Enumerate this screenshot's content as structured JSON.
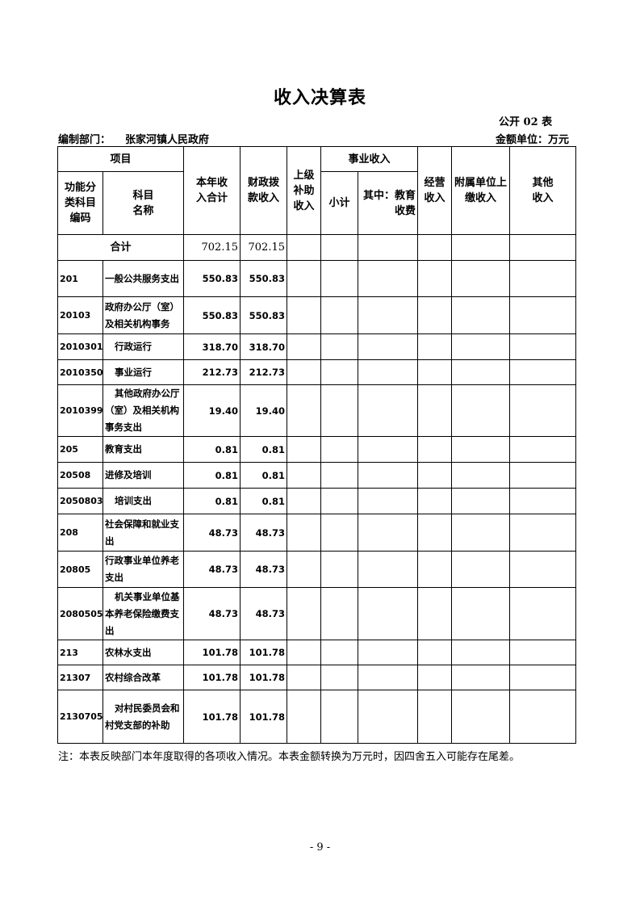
{
  "title": "收入决算表",
  "form_no": "公开 02 表",
  "dept_label": "编制部门：",
  "dept_name": "张家河镇人民政府",
  "unit": "金额单位：万元",
  "headers": {
    "item": "项目",
    "code": "功能分类科目编码",
    "name": "科目名称",
    "total": "本年收入合计",
    "fiscal": "财政拨款收入",
    "upper": "上级补助收入",
    "business": "事业收入",
    "subtotal": "小计",
    "edu": "其中：教育收费",
    "operating": "经营收入",
    "affiliated": "附属单位上缴收入",
    "other": "其他收入"
  },
  "total_row": {
    "label": "合计",
    "total": "702.15",
    "fiscal": "702.15"
  },
  "rows": [
    {
      "code": "201",
      "name": "一般公共服务支出",
      "total": "550.83",
      "fiscal": "550.83",
      "indent": false
    },
    {
      "code": "20103",
      "name": "政府办公厅（室）及相关机构事务",
      "total": "550.83",
      "fiscal": "550.83",
      "indent": false
    },
    {
      "code": "2010301",
      "name": "行政运行",
      "total": "318.70",
      "fiscal": "318.70",
      "indent": true
    },
    {
      "code": "2010350",
      "name": "事业运行",
      "total": "212.73",
      "fiscal": "212.73",
      "indent": true
    },
    {
      "code": "2010399",
      "name": "其他政府办公厅（室）及相关机构事务支出",
      "total": "19.40",
      "fiscal": "19.40",
      "indent": true
    },
    {
      "code": "205",
      "name": "教育支出",
      "total": "0.81",
      "fiscal": "0.81",
      "indent": false
    },
    {
      "code": "20508",
      "name": "进修及培训",
      "total": "0.81",
      "fiscal": "0.81",
      "indent": false
    },
    {
      "code": "2050803",
      "name": "培训支出",
      "total": "0.81",
      "fiscal": "0.81",
      "indent": true
    },
    {
      "code": "208",
      "name": "社会保障和就业支出",
      "total": "48.73",
      "fiscal": "48.73",
      "indent": false
    },
    {
      "code": "20805",
      "name": "行政事业单位养老支出",
      "total": "48.73",
      "fiscal": "48.73",
      "indent": false
    },
    {
      "code": "2080505",
      "name": "机关事业单位基本养老保险缴费支出",
      "total": "48.73",
      "fiscal": "48.73",
      "indent": true
    },
    {
      "code": "213",
      "name": "农林水支出",
      "total": "101.78",
      "fiscal": "101.78",
      "indent": false
    },
    {
      "code": "21307",
      "name": "农村综合改革",
      "total": "101.78",
      "fiscal": "101.78",
      "indent": false
    },
    {
      "code": "2130705",
      "name": "对村民委员会和村党支部的补助",
      "total": "101.78",
      "fiscal": "101.78",
      "indent": true
    }
  ],
  "note": "注：本表反映部门本年度取得的各项收入情况。本表金额转换为万元时，因四舍五入可能存在尾差。",
  "page": "- 9 -"
}
